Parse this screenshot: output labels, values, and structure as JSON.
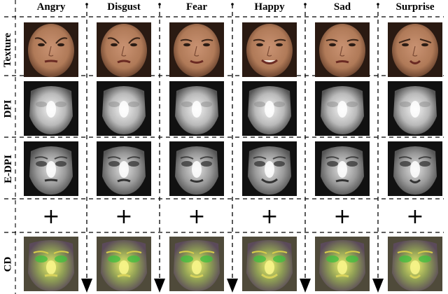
{
  "expressions": [
    "Angry",
    "Disgust",
    "Fear",
    "Happy",
    "Sad",
    "Surprise"
  ],
  "rows": [
    {
      "id": "texture",
      "label": "Texture",
      "kind": "texture"
    },
    {
      "id": "dpi",
      "label": "DPI",
      "kind": "dpi"
    },
    {
      "id": "e-dpi",
      "label": "E-DPI",
      "kind": "edpi"
    },
    {
      "id": "plus",
      "label": "",
      "kind": "plus",
      "symbol": "+"
    },
    {
      "id": "cd",
      "label": "CD",
      "kind": "cd"
    }
  ],
  "colors": {
    "skin": "#b07a58",
    "hair": "#2a1a12",
    "depth_face": "#c8c8c8",
    "depth_bg": "#111111",
    "cd_base": "#8c9a55",
    "cd_highlight": "#e8f06a",
    "cd_green": "#3fbf3f",
    "dash": "#000000"
  },
  "icons": {
    "flow_arrow": "arrow-down-icon"
  }
}
